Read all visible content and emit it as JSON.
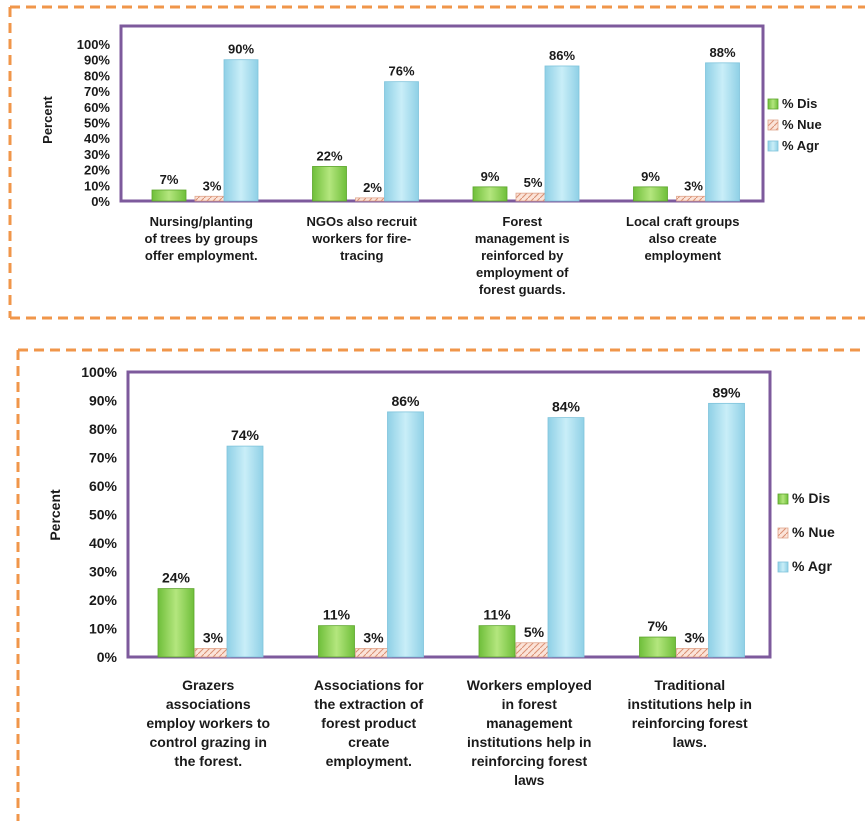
{
  "chart_data": [
    {
      "type": "bar",
      "ylabel": "Percent",
      "ylim": [
        0,
        100
      ],
      "yticks": [
        "0%",
        "10%",
        "20%",
        "30%",
        "40%",
        "50%",
        "60%",
        "70%",
        "80%",
        "90%",
        "100%"
      ],
      "legend_position": "right",
      "categories": [
        [
          "Nursing/planting",
          "of trees by groups",
          "offer employment."
        ],
        [
          "NGOs also recruit",
          "workers for fire-",
          "tracing"
        ],
        [
          "Forest",
          "management is",
          "reinforced by",
          "employment of",
          "forest guards."
        ],
        [
          "Local craft groups",
          "also create",
          "employment"
        ]
      ],
      "series": [
        {
          "name": "% Dis",
          "values": [
            7,
            22,
            9,
            9
          ],
          "labels": [
            "7%",
            "22%",
            "9%",
            "9%"
          ],
          "color": "#8fd14f"
        },
        {
          "name": "% Nue",
          "values": [
            3,
            2,
            5,
            3
          ],
          "labels": [
            "3%",
            "2%",
            "5%",
            "3%"
          ],
          "color": "#f2c4b0"
        },
        {
          "name": "% Agr",
          "values": [
            90,
            76,
            86,
            88
          ],
          "labels": [
            "90%",
            "76%",
            "86%",
            "88%"
          ],
          "color": "#a6dcee"
        }
      ]
    },
    {
      "type": "bar",
      "ylabel": "Percent",
      "ylim": [
        0,
        100
      ],
      "yticks": [
        "0%",
        "10%",
        "20%",
        "30%",
        "40%",
        "50%",
        "60%",
        "70%",
        "80%",
        "90%",
        "100%"
      ],
      "legend_position": "right",
      "categories": [
        [
          "Grazers",
          "associations",
          "employ workers to",
          "control grazing in",
          "the forest."
        ],
        [
          "Associations for",
          "the extraction of",
          "forest product",
          "create",
          "employment."
        ],
        [
          "Workers employed",
          "in forest",
          "management",
          "institutions help in",
          "reinforcing forest",
          "laws"
        ],
        [
          "Traditional",
          "institutions help in",
          "reinforcing forest",
          "laws."
        ]
      ],
      "series": [
        {
          "name": "% Dis",
          "values": [
            24,
            11,
            11,
            7
          ],
          "labels": [
            "24%",
            "11%",
            "11%",
            "7%"
          ],
          "color": "#8fd14f"
        },
        {
          "name": "% Nue",
          "values": [
            3,
            3,
            5,
            3
          ],
          "labels": [
            "3%",
            "3%",
            "5%",
            "3%"
          ],
          "color": "#f2c4b0"
        },
        {
          "name": "% Agr",
          "values": [
            74,
            86,
            84,
            89
          ],
          "labels": [
            "74%",
            "86%",
            "84%",
            "89%"
          ],
          "color": "#a6dcee"
        }
      ]
    }
  ]
}
